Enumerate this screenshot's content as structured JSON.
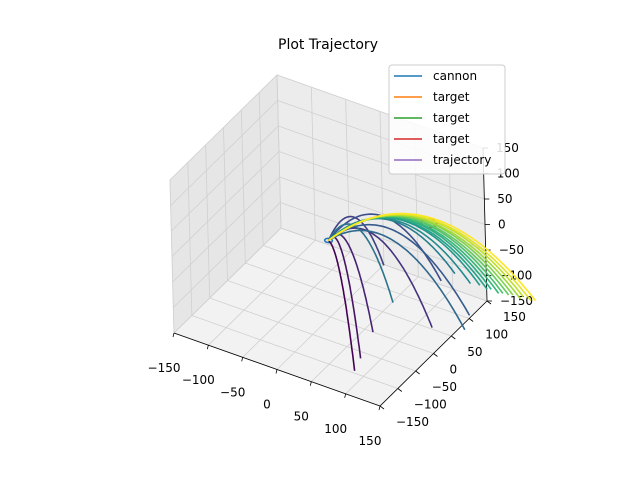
{
  "chart_data": {
    "type": "line",
    "projection": "3d",
    "title": "Plot Trajectory",
    "xlabel": "",
    "ylabel": "",
    "zlabel": "",
    "xlim": [
      -150,
      150
    ],
    "ylim": [
      -150,
      150
    ],
    "zlim": [
      -150,
      150
    ],
    "x_ticks": [
      "−150",
      "−100",
      "−50",
      "0",
      "50",
      "100",
      "150"
    ],
    "y_ticks": [
      "−150",
      "−100",
      "−50",
      "0",
      "50",
      "100",
      "150"
    ],
    "z_ticks": [
      "−150",
      "−100",
      "−50",
      "0",
      "50",
      "100",
      "150"
    ],
    "grid": true,
    "legend_position": "upper right",
    "legend": [
      {
        "label": "cannon",
        "color": "#1f77b4"
      },
      {
        "label": "target",
        "color": "#ff7f0e"
      },
      {
        "label": "target",
        "color": "#2ca02c"
      },
      {
        "label": "target",
        "color": "#d62728"
      },
      {
        "label": "trajectory",
        "color": "#9467bd"
      }
    ],
    "cannon": {
      "center": [
        0,
        0,
        0
      ],
      "radius": 5,
      "color": "#1f77b4"
    },
    "target_ring": {
      "center": [
        100,
        90,
        20
      ],
      "radius": 10,
      "color": "#d62728"
    },
    "trajectory_colormap": "viridis",
    "trajectories": [
      {
        "vx": 0.8,
        "vy": -0.9,
        "h": 6,
        "zend": -150
      },
      {
        "vx": 0.6,
        "vy": -0.5,
        "h": 25,
        "zend": -150
      },
      {
        "vx": 0.5,
        "vy": 0.0,
        "h": 20,
        "zend": -150
      },
      {
        "vx": 0.9,
        "vy": 0.4,
        "h": 30,
        "zend": -150
      },
      {
        "vx": 0.2,
        "vy": 0.9,
        "h": 25,
        "zend": -110
      },
      {
        "vx": 0.6,
        "vy": 1.2,
        "h": 28,
        "zend": -150
      },
      {
        "vx": 1.1,
        "vy": 0.8,
        "h": 30,
        "zend": -150
      },
      {
        "vx": 1.3,
        "vy": 0.4,
        "h": 32,
        "zend": -130
      },
      {
        "vx": 0.4,
        "vy": 0.6,
        "h": 24,
        "zend": -150
      },
      {
        "vx": 1.0,
        "vy": 1.0,
        "h": 34,
        "zend": -90
      },
      {
        "vx": 1.1,
        "vy": 1.0,
        "h": 36,
        "zend": -105
      },
      {
        "vx": 1.15,
        "vy": 1.05,
        "h": 37,
        "zend": -110
      },
      {
        "vx": 1.2,
        "vy": 1.05,
        "h": 38,
        "zend": -115
      },
      {
        "vx": 1.2,
        "vy": 1.1,
        "h": 38,
        "zend": -120
      },
      {
        "vx": 1.25,
        "vy": 1.1,
        "h": 39,
        "zend": -125
      },
      {
        "vx": 1.25,
        "vy": 1.15,
        "h": 39,
        "zend": -130
      },
      {
        "vx": 1.3,
        "vy": 1.15,
        "h": 40,
        "zend": -130
      },
      {
        "vx": 1.3,
        "vy": 1.2,
        "h": 40,
        "zend": -135
      },
      {
        "vx": 1.35,
        "vy": 1.2,
        "h": 41,
        "zend": -140
      },
      {
        "vx": 1.35,
        "vy": 1.25,
        "h": 41,
        "zend": -140
      },
      {
        "vx": 1.4,
        "vy": 1.25,
        "h": 42,
        "zend": -145
      },
      {
        "vx": 1.4,
        "vy": 1.3,
        "h": 42,
        "zend": -150
      }
    ]
  }
}
